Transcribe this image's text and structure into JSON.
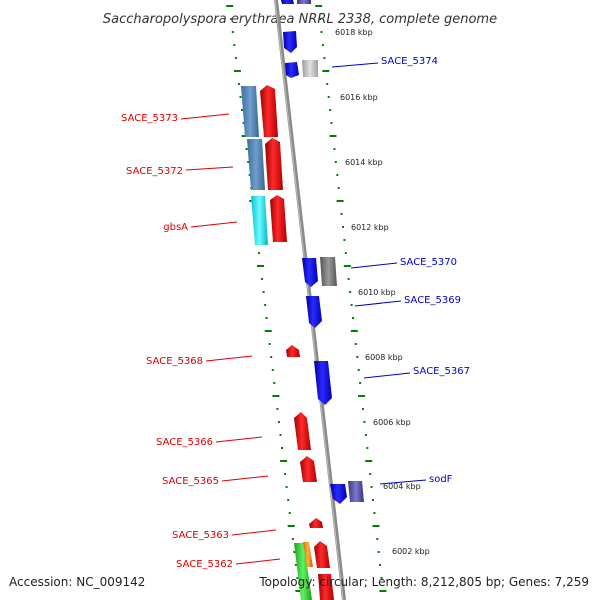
{
  "title": "Saccharopolyspora erythraea NRRL 2338, complete genome",
  "footer": {
    "accession": "Accession: NC_009142",
    "topology": "Topology: circular; Length: 8,212,805 bp; Genes: 7,259"
  },
  "colors": {
    "reverse_label": "#dd0000",
    "forward_label": "#0000cc",
    "backbone": "#888888",
    "tick": "#008000"
  },
  "kbp_labels": [
    "6018 kbp",
    "6016 kbp",
    "6014 kbp",
    "6012 kbp",
    "6010 kbp",
    "6008 kbp",
    "6006 kbp",
    "6004 kbp",
    "6002 kbp"
  ],
  "reverse_genes": [
    "SACE_5373",
    "SACE_5372",
    "gbsA",
    "SACE_5368",
    "SACE_5366",
    "SACE_5365",
    "SACE_5363",
    "SACE_5362"
  ],
  "forward_genes": [
    "SACE_5374",
    "SACE_5370",
    "SACE_5369",
    "SACE_5367",
    "sodF"
  ]
}
